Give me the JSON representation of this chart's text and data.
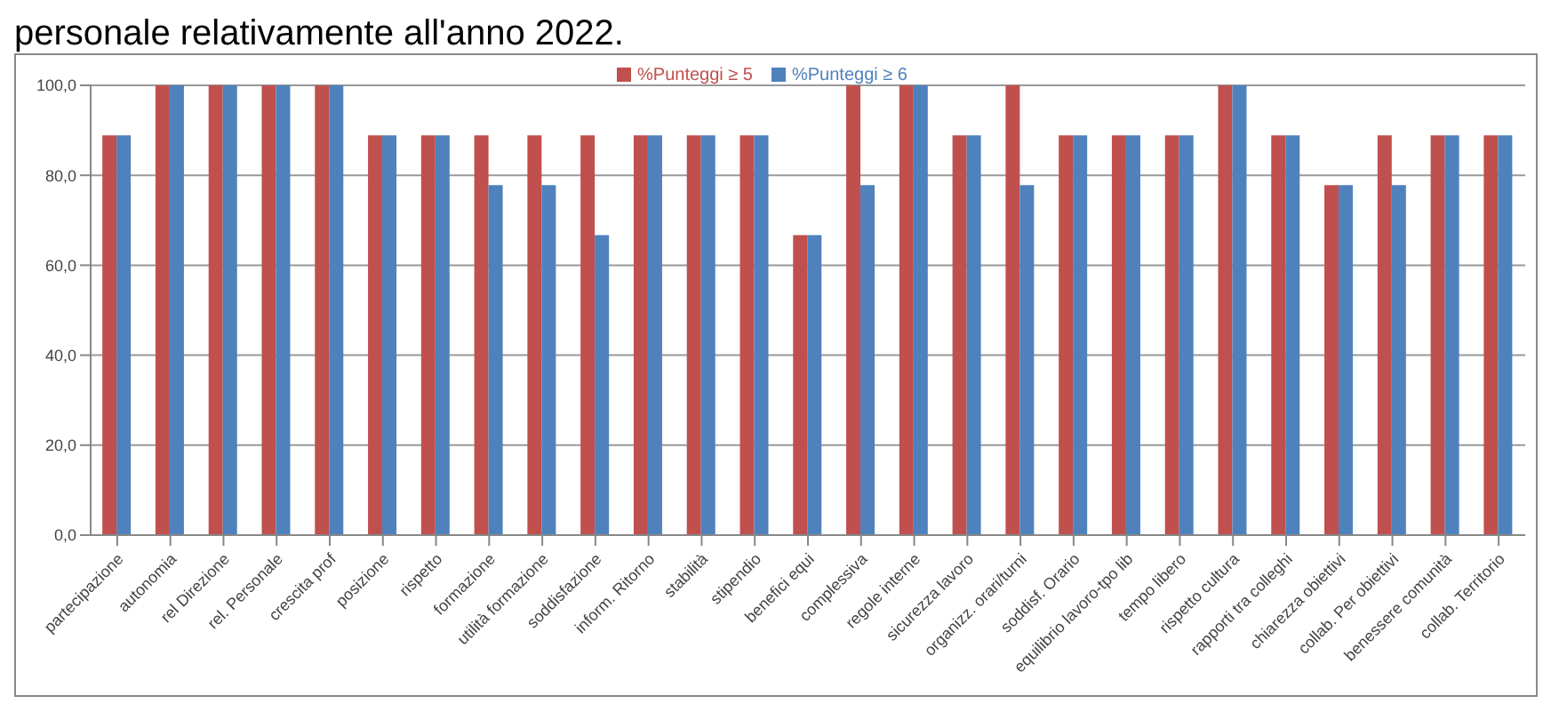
{
  "chart_data": {
    "type": "bar",
    "title": "personale relativamente all'anno 2022.",
    "categories": [
      "partecipazione",
      "autonomia",
      "rel Direzione",
      "rel. Personale",
      "crescita prof",
      "posizione",
      "rispetto",
      "formazione",
      "utilità formazione",
      "soddisfazione",
      "inform. Ritorno",
      "stabilità",
      "stipendio",
      "benefici equi",
      "complessiva",
      "regole interne",
      "sicurezza lavoro",
      "organizz. orari/turni",
      "soddisf. Orario",
      "equilibrio lavoro-tpo lib",
      "tempo libero",
      "rispetto cultura",
      "rapporti tra colleghi",
      "chiarezza obiettivi",
      "collab. Per obiettivi",
      "benessere comunità",
      "collab. Territorio"
    ],
    "series": [
      {
        "name": "%Punteggi ≥ 5",
        "color": "#c0504d",
        "values": [
          88.9,
          100,
          100,
          100,
          100,
          88.9,
          88.9,
          88.9,
          88.9,
          88.9,
          88.9,
          88.9,
          88.9,
          66.7,
          100,
          100,
          88.9,
          100,
          88.9,
          88.9,
          88.9,
          100,
          88.9,
          77.8,
          88.9,
          88.9,
          88.9
        ]
      },
      {
        "name": "%Punteggi ≥ 6",
        "color": "#4f81bd",
        "values": [
          88.9,
          100,
          100,
          100,
          100,
          88.9,
          88.9,
          77.8,
          77.8,
          66.7,
          88.9,
          88.9,
          88.9,
          66.7,
          77.8,
          100,
          88.9,
          77.8,
          88.9,
          88.9,
          88.9,
          100,
          88.9,
          77.8,
          77.8,
          88.9,
          88.9
        ]
      }
    ],
    "ylim": [
      0,
      100
    ],
    "yticks": [
      {
        "value": 0,
        "label": "0,0"
      },
      {
        "value": 20,
        "label": "20,0"
      },
      {
        "value": 40,
        "label": "40,0"
      },
      {
        "value": 60,
        "label": "60,0"
      },
      {
        "value": 80,
        "label": "80,0"
      },
      {
        "value": 100,
        "label": "100,0"
      }
    ],
    "grid": "y",
    "legend": "top"
  }
}
